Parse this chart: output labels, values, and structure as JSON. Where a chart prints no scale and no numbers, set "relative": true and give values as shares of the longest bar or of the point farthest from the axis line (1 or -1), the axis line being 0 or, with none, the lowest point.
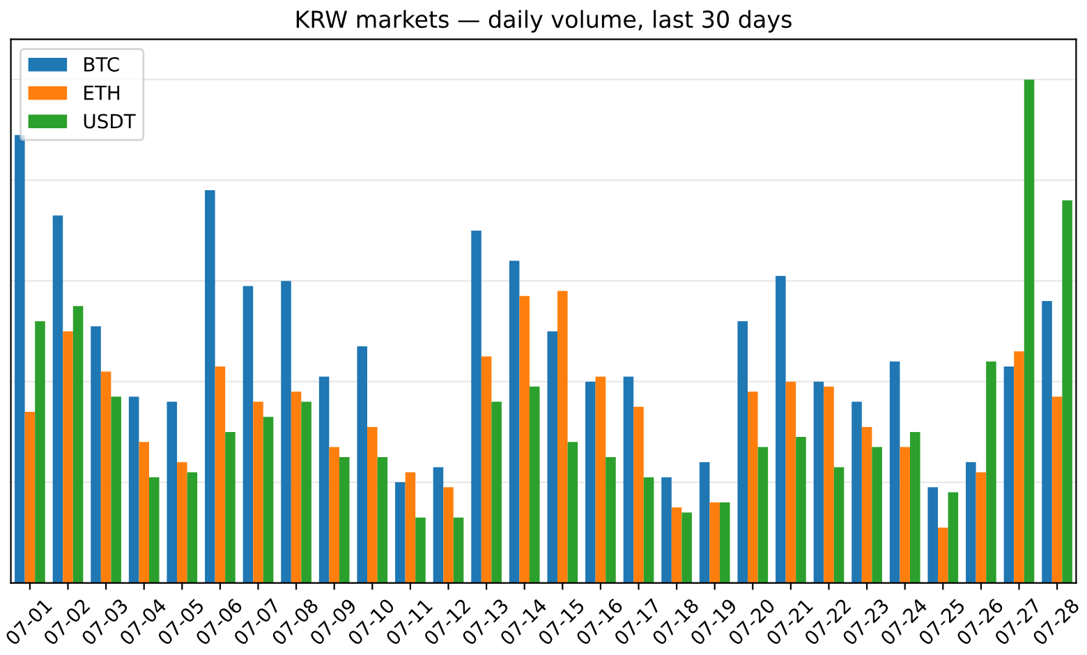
{
  "chart_data": {
    "type": "bar",
    "title": "KRW markets — daily volume, last 30 days",
    "relative": true,
    "grid": "y",
    "legend": "top left",
    "categories": [
      "07-01",
      "07-02",
      "07-03",
      "07-04",
      "07-05",
      "07-06",
      "07-07",
      "07-08",
      "07-09",
      "07-10",
      "07-11",
      "07-12",
      "07-13",
      "07-14",
      "07-15",
      "07-16",
      "07-17",
      "07-18",
      "07-19",
      "07-20",
      "07-21",
      "07-22",
      "07-23",
      "07-24",
      "07-25",
      "07-26",
      "07-27",
      "07-28"
    ],
    "series": [
      {
        "name": "BTC",
        "color": "#1f77b4",
        "values": [
          0.89,
          0.73,
          0.51,
          0.37,
          0.36,
          0.78,
          0.59,
          0.6,
          0.41,
          0.47,
          0.2,
          0.23,
          0.7,
          0.64,
          0.5,
          0.4,
          0.41,
          0.21,
          0.24,
          0.52,
          0.61,
          0.4,
          0.36,
          0.44,
          0.19,
          0.24,
          0.43,
          0.56
        ]
      },
      {
        "name": "ETH",
        "color": "#ff7f0e",
        "values": [
          0.34,
          0.5,
          0.42,
          0.28,
          0.24,
          0.43,
          0.36,
          0.38,
          0.27,
          0.31,
          0.22,
          0.19,
          0.45,
          0.57,
          0.58,
          0.41,
          0.35,
          0.15,
          0.16,
          0.38,
          0.4,
          0.39,
          0.31,
          0.27,
          0.11,
          0.22,
          0.46,
          0.37
        ]
      },
      {
        "name": "USDT",
        "color": "#2ca02c",
        "values": [
          0.52,
          0.55,
          0.37,
          0.21,
          0.22,
          0.3,
          0.33,
          0.36,
          0.25,
          0.25,
          0.13,
          0.13,
          0.36,
          0.39,
          0.28,
          0.25,
          0.21,
          0.14,
          0.16,
          0.27,
          0.29,
          0.23,
          0.27,
          0.3,
          0.18,
          0.44,
          1.0,
          0.76
        ]
      }
    ]
  }
}
